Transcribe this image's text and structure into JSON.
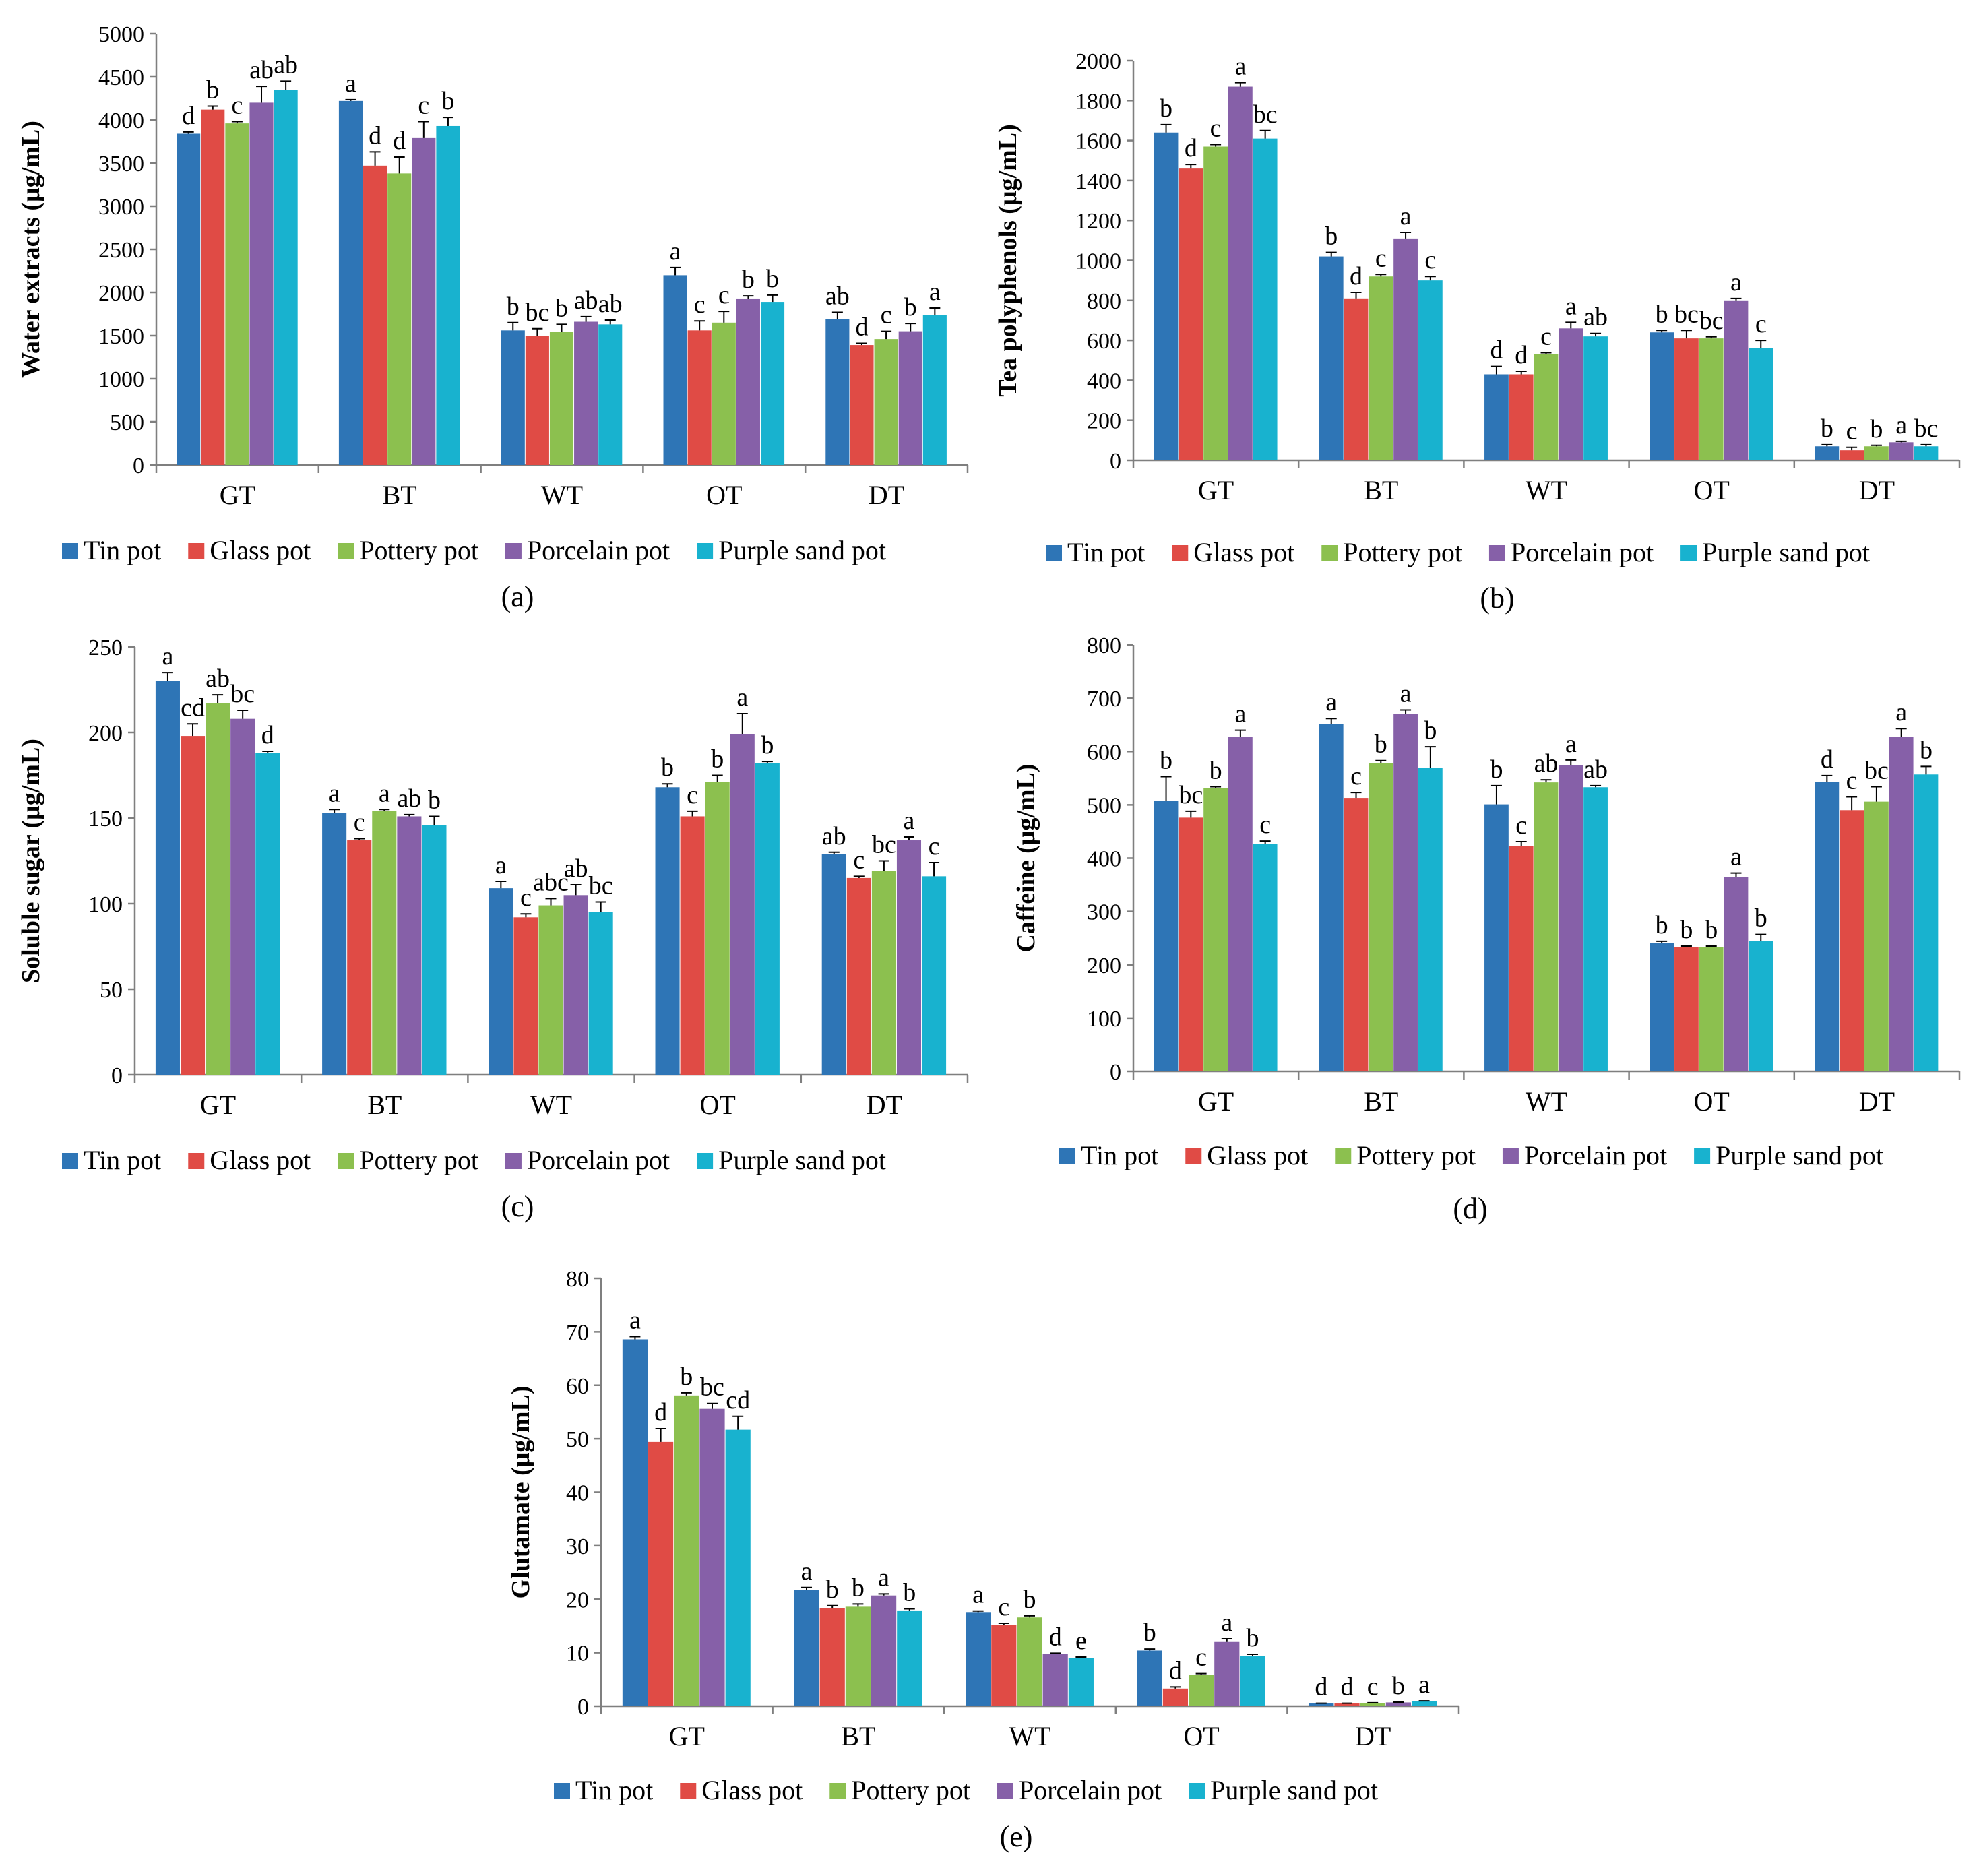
{
  "colors": {
    "tin": "#2e75b6",
    "glass": "#e04b45",
    "pottery": "#8cc04f",
    "porcelain": "#8660a8",
    "purple_sand": "#18b2cf"
  },
  "chart_data": [
    {
      "panel": "(a)",
      "type": "bar",
      "ylabel": "Water extracts (μg/mL)",
      "ylim": [
        0,
        5000
      ],
      "yticks": [
        "0",
        "500",
        "1000",
        "1500",
        "2000",
        "2500",
        "3000",
        "3500",
        "4000",
        "4500",
        "5000"
      ],
      "categories": [
        "GT",
        "BT",
        "WT",
        "OT",
        "DT"
      ],
      "legend_position": "bottom",
      "series": [
        {
          "name": "Tin pot",
          "values": [
            3840,
            4220,
            1560,
            2200,
            1690
          ],
          "errors": [
            20,
            15,
            90,
            90,
            80
          ],
          "letters": [
            "d",
            "a",
            "b",
            "a",
            "ab"
          ]
        },
        {
          "name": "Glass pot",
          "values": [
            4120,
            3470,
            1500,
            1560,
            1390
          ],
          "errors": [
            40,
            160,
            80,
            110,
            20
          ],
          "letters": [
            "b",
            "d",
            "bc",
            "c",
            "d"
          ]
        },
        {
          "name": "Pottery pot",
          "values": [
            3960,
            3380,
            1540,
            1650,
            1460
          ],
          "errors": [
            20,
            190,
            90,
            130,
            90
          ],
          "letters": [
            "c",
            "d",
            "b",
            "c",
            "c"
          ]
        },
        {
          "name": "Porcelain pot",
          "values": [
            4200,
            3790,
            1660,
            1930,
            1550
          ],
          "errors": [
            190,
            190,
            60,
            30,
            90
          ],
          "letters": [
            "ab",
            "c",
            "ab",
            "b",
            "b"
          ]
        },
        {
          "name": "Purple sand pot",
          "values": [
            4350,
            3930,
            1630,
            1890,
            1740
          ],
          "errors": [
            100,
            100,
            50,
            80,
            80
          ],
          "letters": [
            "ab",
            "b",
            "ab",
            "b",
            "a"
          ]
        }
      ]
    },
    {
      "panel": "(b)",
      "type": "bar",
      "ylabel": "Tea polyphenols (μg/mL)",
      "ylim": [
        0,
        2000
      ],
      "yticks": [
        "0",
        "200",
        "400",
        "600",
        "800",
        "1000",
        "1200",
        "1400",
        "1600",
        "1800",
        "2000"
      ],
      "categories": [
        "GT",
        "BT",
        "WT",
        "OT",
        "DT"
      ],
      "legend_position": "bottom",
      "series": [
        {
          "name": "Tin pot",
          "values": [
            1640,
            1020,
            430,
            640,
            70
          ],
          "errors": [
            40,
            20,
            40,
            10,
            8
          ],
          "letters": [
            "b",
            "b",
            "d",
            "b",
            "b"
          ]
        },
        {
          "name": "Glass pot",
          "values": [
            1460,
            810,
            430,
            610,
            50
          ],
          "errors": [
            20,
            30,
            15,
            40,
            15
          ],
          "letters": [
            "d",
            "d",
            "d",
            "bc",
            "c"
          ]
        },
        {
          "name": "Pottery pot",
          "values": [
            1570,
            920,
            530,
            610,
            70
          ],
          "errors": [
            10,
            10,
            8,
            8,
            5
          ],
          "letters": [
            "c",
            "c",
            "c",
            "bc",
            "b"
          ]
        },
        {
          "name": "Porcelain pot",
          "values": [
            1870,
            1110,
            660,
            800,
            90
          ],
          "errors": [
            20,
            30,
            30,
            10,
            5
          ],
          "letters": [
            "a",
            "a",
            "a",
            "a",
            "a"
          ]
        },
        {
          "name": "Purple sand pot",
          "values": [
            1610,
            900,
            620,
            560,
            70
          ],
          "errors": [
            40,
            20,
            15,
            40,
            8
          ],
          "letters": [
            "bc",
            "c",
            "ab",
            "c",
            "bc"
          ]
        }
      ]
    },
    {
      "panel": "(c)",
      "type": "bar",
      "ylabel": "Soluble sugar (μg/mL)",
      "ylim": [
        0,
        250
      ],
      "yticks": [
        "0",
        "50",
        "100",
        "150",
        "200",
        "250"
      ],
      "categories": [
        "GT",
        "BT",
        "WT",
        "OT",
        "DT"
      ],
      "legend_position": "bottom",
      "series": [
        {
          "name": "Tin pot",
          "values": [
            230,
            153,
            109,
            168,
            129
          ],
          "errors": [
            5,
            2,
            4,
            2,
            1
          ],
          "letters": [
            "a",
            "a",
            "a",
            "b",
            "ab"
          ]
        },
        {
          "name": "Glass pot",
          "values": [
            198,
            137,
            92,
            151,
            115
          ],
          "errors": [
            7,
            1,
            2,
            3,
            1
          ],
          "letters": [
            "cd",
            "c",
            "c",
            "c",
            "c"
          ]
        },
        {
          "name": "Pottery pot",
          "values": [
            217,
            154,
            99,
            171,
            119
          ],
          "errors": [
            5,
            1,
            4,
            4,
            6
          ],
          "letters": [
            "ab",
            "a",
            "abc",
            "b",
            "bc"
          ]
        },
        {
          "name": "Porcelain pot",
          "values": [
            208,
            151,
            105,
            199,
            137
          ],
          "errors": [
            5,
            1,
            6,
            12,
            2
          ],
          "letters": [
            "bc",
            "ab",
            "ab",
            "a",
            "a"
          ]
        },
        {
          "name": "Purple sand pot",
          "values": [
            188,
            146,
            95,
            182,
            116
          ],
          "errors": [
            1,
            5,
            6,
            1,
            8
          ],
          "letters": [
            "d",
            "b",
            "bc",
            "b",
            "c"
          ]
        }
      ]
    },
    {
      "panel": "(d)",
      "type": "bar",
      "ylabel": "Caffeine (μg/mL)",
      "ylim": [
        0,
        800
      ],
      "yticks": [
        "0",
        "100",
        "200",
        "300",
        "400",
        "500",
        "600",
        "700",
        "800"
      ],
      "categories": [
        "GT",
        "BT",
        "WT",
        "OT",
        "DT"
      ],
      "legend_position": "bottom",
      "series": [
        {
          "name": "Tin pot",
          "values": [
            508,
            652,
            501,
            241,
            543
          ],
          "errors": [
            45,
            10,
            35,
            3,
            12
          ],
          "letters": [
            "b",
            "a",
            "b",
            "b",
            "d"
          ]
        },
        {
          "name": "Glass pot",
          "values": [
            476,
            513,
            423,
            233,
            490
          ],
          "errors": [
            12,
            10,
            8,
            2,
            25
          ],
          "letters": [
            "bc",
            "c",
            "c",
            "b",
            "c"
          ]
        },
        {
          "name": "Pottery pot",
          "values": [
            531,
            578,
            542,
            233,
            506
          ],
          "errors": [
            3,
            5,
            5,
            2,
            28
          ],
          "letters": [
            "b",
            "b",
            "ab",
            "b",
            "bc"
          ]
        },
        {
          "name": "Porcelain pot",
          "values": [
            628,
            670,
            574,
            364,
            628
          ],
          "errors": [
            12,
            8,
            10,
            8,
            15
          ],
          "letters": [
            "a",
            "a",
            "a",
            "a",
            "a"
          ]
        },
        {
          "name": "Purple sand pot",
          "values": [
            427,
            569,
            533,
            245,
            557
          ],
          "errors": [
            5,
            40,
            3,
            12,
            15
          ],
          "letters": [
            "c",
            "b",
            "ab",
            "b",
            "b"
          ]
        }
      ]
    },
    {
      "panel": "(e)",
      "type": "bar",
      "ylabel": "Glutamate (μg/mL)",
      "ylim": [
        0,
        80
      ],
      "yticks": [
        "0",
        "10",
        "20",
        "30",
        "40",
        "50",
        "60",
        "70",
        "80"
      ],
      "categories": [
        "GT",
        "BT",
        "WT",
        "OT",
        "DT"
      ],
      "legend_position": "bottom",
      "series": [
        {
          "name": "Tin pot",
          "values": [
            68.6,
            21.7,
            17.6,
            10.4,
            0.5
          ],
          "errors": [
            0.5,
            0.5,
            0.2,
            0.3,
            0.05
          ],
          "letters": [
            "a",
            "a",
            "a",
            "b",
            "d"
          ]
        },
        {
          "name": "Glass pot",
          "values": [
            49.4,
            18.3,
            15.2,
            3.3,
            0.5
          ],
          "errors": [
            2.5,
            0.5,
            0.3,
            0.3,
            0.05
          ],
          "letters": [
            "d",
            "b",
            "c",
            "d",
            "d"
          ]
        },
        {
          "name": "Pottery pot",
          "values": [
            58.1,
            18.6,
            16.6,
            5.8,
            0.6
          ],
          "errors": [
            0.5,
            0.5,
            0.3,
            0.3,
            0.05
          ],
          "letters": [
            "b",
            "b",
            "b",
            "c",
            "c"
          ]
        },
        {
          "name": "Porcelain pot",
          "values": [
            55.6,
            20.7,
            9.7,
            12.0,
            0.7
          ],
          "errors": [
            1.0,
            0.3,
            0.2,
            0.6,
            0.05
          ],
          "letters": [
            "bc",
            "a",
            "d",
            "a",
            "b"
          ]
        },
        {
          "name": "Purple sand pot",
          "values": [
            51.7,
            17.9,
            9.0,
            9.4,
            0.9
          ],
          "errors": [
            2.5,
            0.3,
            0.2,
            0.3,
            0.1
          ],
          "letters": [
            "cd",
            "b",
            "e",
            "b",
            "a"
          ]
        }
      ]
    }
  ]
}
